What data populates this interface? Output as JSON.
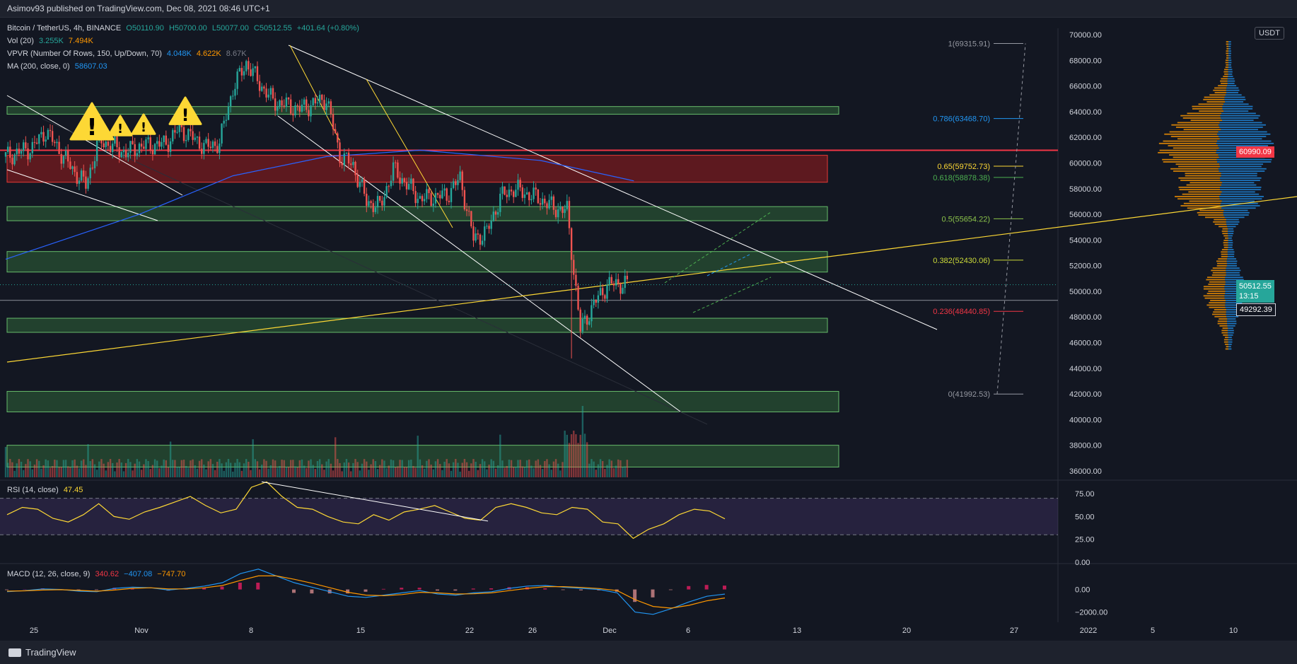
{
  "header": {
    "published_by": "Asimov93 published on TradingView.com, Dec 08, 2021 08:46 UTC+1"
  },
  "legend": {
    "symbol": "Bitcoin / TetherUS, 4h, BINANCE",
    "open": "O50110.90",
    "high": "H50700.00",
    "low": "L50077.00",
    "close": "C50512.55",
    "change": "+401.64 (+0.80%)",
    "vol_label": "Vol (20)",
    "vol_v1": "3.255K",
    "vol_v2": "7.494K",
    "vpvr_label": "VPVR (Number Of Rows, 150, Up/Down, 70)",
    "vpvr_v1": "4.048K",
    "vpvr_v2": "4.622K",
    "vpvr_v3": "8.67K",
    "ma_label": "MA (200, close, 0)",
    "ma_value": "58607.03",
    "rsi_label": "RSI (14, close)",
    "rsi_value": "47.45",
    "macd_label": "MACD (12, 26, close, 9)",
    "macd_hist": "340.62",
    "macd_line": "−407.08",
    "macd_signal": "−747.70"
  },
  "price_axis": {
    "currency": "USDT",
    "current_price": "50512.55",
    "countdown": "13:15",
    "ref_price": "49292.39",
    "red_level": "60990.09"
  },
  "colors": {
    "background": "#131722",
    "up": "#26a69a",
    "down": "#ef5350",
    "zone_green": "#4caf50",
    "zone_red": "#b71c1c",
    "fib": "#d1d4dc",
    "trend_white": "#ffffff",
    "trend_yellow": "#fdd835",
    "ma": "#2962ff",
    "rsi": "#fdd835",
    "macd_line": "#2196f3",
    "macd_signal": "#ff9800"
  },
  "chart_data": [
    {
      "type": "candlestick",
      "title": "Bitcoin / TetherUS, 4h, BINANCE",
      "xlabel": "",
      "ylabel": "",
      "ylim": [
        35500,
        70500
      ],
      "y_ticks": [
        "36000.00",
        "38000.00",
        "40000.00",
        "42000.00",
        "44000.00",
        "46000.00",
        "48000.00",
        "50000.00",
        "52000.00",
        "54000.00",
        "56000.00",
        "58000.00",
        "60000.00",
        "62000.00",
        "64000.00",
        "66000.00",
        "68000.00",
        "70000.00"
      ],
      "x_tick_labels": [
        "25",
        "Nov",
        "8",
        "15",
        "22",
        "26",
        "Dec",
        "6",
        "13",
        "20",
        "27",
        "2022",
        "5",
        "10"
      ],
      "price_path": [
        [
          "Oct 22",
          60500
        ],
        [
          "Oct 24",
          61200
        ],
        [
          "Oct 25",
          62500
        ],
        [
          "Oct 27",
          59500
        ],
        [
          "Oct 28",
          58300
        ],
        [
          "Oct 29",
          61800
        ],
        [
          "Oct 31",
          60800
        ],
        [
          "Nov 1",
          61300
        ],
        [
          "Nov 3",
          61500
        ],
        [
          "Nov 4",
          62700
        ],
        [
          "Nov 6",
          61200
        ],
        [
          "Nov 7",
          61600
        ],
        [
          "Nov 8",
          65800
        ],
        [
          "Nov 9",
          67800
        ],
        [
          "Nov 10",
          66200
        ],
        [
          "Nov 11",
          64800
        ],
        [
          "Nov 13",
          64200
        ],
        [
          "Nov 15",
          65000
        ],
        [
          "Nov 16",
          60600
        ],
        [
          "Nov 17",
          59800
        ],
        [
          "Nov 18",
          57000
        ],
        [
          "Nov 19",
          56600
        ],
        [
          "Nov 20",
          59500
        ],
        [
          "Nov 22",
          57200
        ],
        [
          "Nov 24",
          57500
        ],
        [
          "Nov 25",
          58800
        ],
        [
          "Nov 26",
          54100
        ],
        [
          "Nov 27",
          54600
        ],
        [
          "Nov 28",
          57300
        ],
        [
          "Nov 29",
          58000
        ],
        [
          "Dec 1",
          57200
        ],
        [
          "Dec 2",
          56500
        ],
        [
          "Dec 3",
          56300
        ],
        [
          "Dec 4",
          47000
        ],
        [
          "Dec 5",
          49000
        ],
        [
          "Dec 6",
          50500
        ],
        [
          "Dec 7",
          50600
        ],
        [
          "Dec 8",
          50512.55
        ]
      ],
      "ma200": [
        [
          "Oct 22",
          52500
        ],
        [
          "Nov 1",
          56000
        ],
        [
          "Nov 8",
          59000
        ],
        [
          "Nov 15",
          60500
        ],
        [
          "Nov 22",
          61000
        ],
        [
          "Dec 1",
          60200
        ],
        [
          "Dec 8",
          58607.03
        ]
      ],
      "horizontal_levels": [
        {
          "price": 60990.09,
          "color": "red"
        }
      ],
      "zones": [
        {
          "from": 63800,
          "to": 64400,
          "color": "green"
        },
        {
          "from": 58500,
          "to": 60600,
          "color": "red"
        },
        {
          "from": 55500,
          "to": 56600,
          "color": "green"
        },
        {
          "from": 51500,
          "to": 53100,
          "color": "green"
        },
        {
          "from": 46800,
          "to": 47900,
          "color": "green"
        },
        {
          "from": 40600,
          "to": 42200,
          "color": "green"
        },
        {
          "from": 36300,
          "to": 38000,
          "color": "green"
        }
      ],
      "fibonacci": [
        {
          "label": "1(69315.91)",
          "price": 69315.91
        },
        {
          "label": "0.786(63468.70)",
          "price": 63468.7
        },
        {
          "label": "0.65(59752.73)",
          "price": 59752.73
        },
        {
          "label": "0.618(58878.38)",
          "price": 58878.38
        },
        {
          "label": "0.5(55654.22)",
          "price": 55654.22
        },
        {
          "label": "0.382(52430.06)",
          "price": 52430.06
        },
        {
          "label": "0.236(48440.85)",
          "price": 48440.85
        },
        {
          "label": "0(41992.53)",
          "price": 41992.53
        }
      ],
      "warning_markers": 4
    },
    {
      "type": "line",
      "title": "RSI (14, close)",
      "ylim": [
        0,
        87.5
      ],
      "y_ticks": [
        "0.00",
        "25.00",
        "50.00",
        "75.00"
      ],
      "band": [
        30,
        70
      ],
      "values": [
        52,
        60,
        58,
        48,
        44,
        52,
        64,
        50,
        47,
        55,
        60,
        66,
        72,
        62,
        54,
        58,
        82,
        88,
        72,
        60,
        58,
        50,
        44,
        42,
        52,
        46,
        55,
        58,
        62,
        55,
        48,
        46,
        60,
        64,
        60,
        54,
        52,
        60,
        58,
        44,
        42,
        26,
        36,
        42,
        52,
        58,
        56,
        47.45
      ]
    },
    {
      "type": "line",
      "title": "MACD (12, 26, close, 9)",
      "ylim": [
        -2900,
        2100
      ],
      "y_ticks": [
        "0.00",
        "−2000.00"
      ],
      "macd": [
        -200,
        -100,
        50,
        0,
        -150,
        -200,
        100,
        200,
        150,
        -50,
        100,
        300,
        600,
        1400,
        1800,
        1200,
        600,
        200,
        -200,
        -600,
        -700,
        -500,
        -300,
        -100,
        -400,
        -500,
        -300,
        -200,
        100,
        300,
        350,
        200,
        100,
        0,
        -300,
        -2000,
        -2200,
        -1700,
        -1100,
        -600,
        -407.08
      ],
      "signal": [
        -150,
        -120,
        -50,
        -20,
        -80,
        -150,
        -50,
        100,
        150,
        50,
        50,
        150,
        350,
        800,
        1200,
        1200,
        900,
        550,
        150,
        -250,
        -500,
        -550,
        -450,
        -250,
        -300,
        -400,
        -380,
        -300,
        -100,
        100,
        250,
        250,
        180,
        80,
        -100,
        -900,
        -1500,
        -1650,
        -1400,
        -1000,
        -747.7
      ]
    }
  ]
}
